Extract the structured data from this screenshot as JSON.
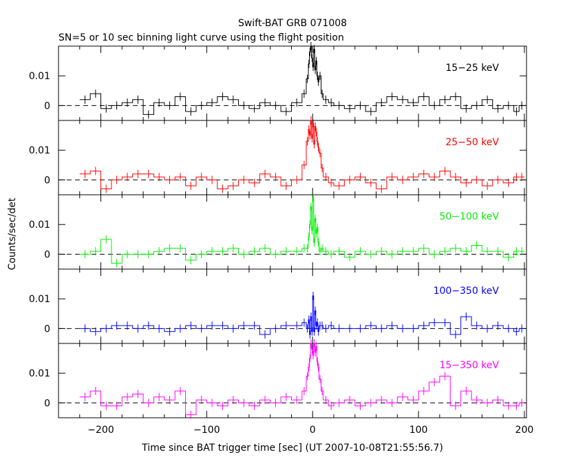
{
  "chart_data": {
    "type": "line",
    "title": "Swift-BAT GRB 071008",
    "subtitle": "SN=5 or 10 sec binning light curve using the flight position",
    "xlabel": "Time since BAT trigger time [sec] (UT 2007-10-08T21:55:56.7)",
    "ylabel": "Counts/sec/det",
    "xlim": [
      -240,
      202
    ],
    "x_ticks": [
      -200,
      -100,
      0,
      100,
      200
    ],
    "x_tick_labels": [
      "−200",
      "−100",
      "0",
      "100",
      "200"
    ],
    "y_ticks": [
      0,
      0.01
    ],
    "y_tick_labels": [
      "0",
      "0.01"
    ],
    "grid": false,
    "legend": "none",
    "panels": [
      {
        "label": "15−25 keV",
        "color": "#000000",
        "ylim": [
          -0.005,
          0.02
        ],
        "series": [
          {
            "x": [
              -220,
              -210,
              -200,
              -190,
              -180,
              -170,
              -160,
              -150,
              -140,
              -130,
              -120,
              -110,
              -100,
              -90,
              -80,
              -70,
              -60,
              -50,
              -40,
              -30,
              -20,
              -10,
              -6,
              -4,
              -3,
              -2,
              -1,
              0,
              1,
              2,
              3,
              4,
              5,
              6,
              8,
              10,
              15,
              20,
              30,
              40,
              50,
              60,
              70,
              80,
              90,
              100,
              110,
              120,
              130,
              140,
              150,
              160,
              170,
              180,
              190,
              195
            ],
            "y": [
              0.002,
              0.004,
              -0.001,
              0,
              0.001,
              0.002,
              -0.003,
              0.001,
              0,
              0.003,
              -0.002,
              0,
              0.001,
              0.003,
              0.002,
              0,
              -0.001,
              0.001,
              0,
              -0.002,
              0.001,
              0.004,
              0.009,
              0.014,
              0.018,
              0.02,
              0.016,
              0.013,
              0.019,
              0.012,
              0.015,
              0.01,
              0.008,
              0.01,
              0.004,
              0.002,
              0.001,
              0,
              -0.001,
              0,
              -0.002,
              0.001,
              0.003,
              0.002,
              0.001,
              0.003,
              0,
              0.002,
              0.003,
              -0.001,
              0,
              0.002,
              -0.001,
              0,
              -0.002,
              0
            ]
          }
        ]
      },
      {
        "label": "25−50 keV",
        "color": "#ff0000",
        "ylim": [
          -0.005,
          0.02
        ],
        "series": [
          {
            "x": [
              -220,
              -210,
              -200,
              -190,
              -180,
              -170,
              -160,
              -150,
              -140,
              -130,
              -120,
              -110,
              -100,
              -90,
              -80,
              -70,
              -60,
              -50,
              -40,
              -30,
              -20,
              -10,
              -6,
              -4,
              -3,
              -2,
              -1,
              0,
              1,
              2,
              3,
              4,
              5,
              6,
              8,
              10,
              15,
              20,
              30,
              40,
              50,
              60,
              70,
              80,
              90,
              100,
              110,
              120,
              130,
              140,
              150,
              160,
              170,
              180,
              190,
              195
            ],
            "y": [
              0.002,
              0.003,
              -0.003,
              0,
              0.001,
              0.002,
              0.002,
              0.001,
              0,
              0.001,
              -0.002,
              0.001,
              0,
              -0.003,
              -0.002,
              0,
              -0.001,
              0.002,
              0.001,
              -0.002,
              0,
              0.005,
              0.013,
              0.017,
              0.015,
              0.02,
              0.014,
              0.019,
              0.012,
              0.018,
              0.016,
              0.013,
              0.011,
              0.009,
              0.004,
              0.001,
              -0.001,
              -0.002,
              0,
              0.001,
              -0.001,
              -0.003,
              0.001,
              0,
              0.001,
              0.002,
              0.001,
              0.003,
              0.001,
              -0.001,
              0,
              -0.002,
              0,
              -0.001,
              0.001,
              0.001
            ]
          }
        ]
      },
      {
        "label": "50−100 keV",
        "color": "#00ee00",
        "ylim": [
          -0.005,
          0.02
        ],
        "series": [
          {
            "x": [
              -220,
              -210,
              -200,
              -190,
              -180,
              -170,
              -160,
              -150,
              -140,
              -130,
              -120,
              -110,
              -100,
              -90,
              -80,
              -70,
              -60,
              -50,
              -40,
              -30,
              -20,
              -10,
              -6,
              -4,
              -3,
              -2,
              -1,
              0,
              1,
              2,
              3,
              4,
              5,
              6,
              8,
              10,
              15,
              20,
              30,
              40,
              50,
              60,
              70,
              80,
              90,
              100,
              110,
              120,
              130,
              140,
              150,
              160,
              170,
              180,
              190,
              195
            ],
            "y": [
              0,
              0.001,
              0.005,
              -0.003,
              0,
              0,
              0,
              0.001,
              0.002,
              0.002,
              -0.002,
              0,
              0.001,
              0.001,
              0.002,
              0,
              0.001,
              0.002,
              0,
              0.001,
              0.001,
              0.002,
              0.002,
              0.006,
              0.01,
              0.016,
              0.008,
              0.019,
              0.004,
              0.012,
              0.007,
              0.009,
              0.004,
              0.001,
              0.002,
              0.001,
              0,
              0.001,
              -0.001,
              0.001,
              0,
              0.001,
              0,
              0.001,
              0.001,
              0.002,
              0,
              0.001,
              0.002,
              0.001,
              0.003,
              0.001,
              0.001,
              -0.001,
              0.001,
              0.001
            ]
          }
        ]
      },
      {
        "label": "100−350 keV",
        "color": "#0000ff",
        "ylim": [
          -0.005,
          0.02
        ],
        "series": [
          {
            "x": [
              -220,
              -210,
              -200,
              -190,
              -180,
              -170,
              -160,
              -150,
              -140,
              -130,
              -120,
              -110,
              -100,
              -90,
              -80,
              -70,
              -60,
              -50,
              -40,
              -30,
              -20,
              -10,
              -6,
              -4,
              -3,
              -2,
              -1,
              0,
              1,
              2,
              3,
              4,
              5,
              6,
              8,
              10,
              15,
              20,
              30,
              40,
              50,
              60,
              70,
              80,
              90,
              100,
              110,
              120,
              130,
              140,
              150,
              160,
              170,
              180,
              190,
              195
            ],
            "y": [
              0,
              -0.001,
              0,
              0.001,
              0.001,
              0,
              0.001,
              0,
              -0.001,
              0,
              0.001,
              0,
              0.001,
              0.001,
              0,
              0.001,
              0.001,
              -0.002,
              0,
              0.001,
              0.001,
              0.002,
              0,
              0.003,
              -0.002,
              0.004,
              -0.001,
              0.011,
              -0.001,
              0.006,
              0.001,
              0.002,
              -0.001,
              0.001,
              0.001,
              0,
              0.001,
              0,
              0,
              0,
              0.001,
              0,
              0.001,
              0,
              0,
              0.001,
              0.002,
              0.002,
              -0.002,
              0.004,
              0.001,
              0,
              0.001,
              0,
              -0.001,
              0
            ]
          }
        ]
      },
      {
        "label": "15−350 keV",
        "color": "#ff00ff",
        "ylim": [
          -0.005,
          0.02
        ],
        "series": [
          {
            "x": [
              -220,
              -210,
              -200,
              -190,
              -180,
              -170,
              -160,
              -150,
              -140,
              -130,
              -120,
              -110,
              -100,
              -90,
              -80,
              -70,
              -60,
              -50,
              -40,
              -30,
              -20,
              -10,
              -6,
              -4,
              -3,
              -2,
              -1,
              0,
              1,
              2,
              3,
              4,
              5,
              6,
              8,
              10,
              15,
              20,
              30,
              40,
              50,
              60,
              70,
              80,
              90,
              100,
              110,
              120,
              130,
              140,
              150,
              160,
              170,
              180,
              190,
              195
            ],
            "y": [
              0.002,
              0.004,
              -0.001,
              -0.001,
              0.002,
              0.003,
              0,
              0.002,
              0.001,
              0.004,
              -0.004,
              0.001,
              0,
              -0.001,
              0.001,
              0,
              -0.001,
              0.001,
              0,
              0.002,
              0.001,
              0.004,
              0.009,
              0.012,
              0.015,
              0.02,
              0.018,
              0.016,
              0.02,
              0.017,
              0.019,
              0.014,
              0.012,
              0.008,
              0.004,
              0.001,
              -0.001,
              0,
              0.001,
              -0.001,
              0,
              0.001,
              0,
              0.002,
              0.001,
              0.004,
              0.007,
              0.009,
              -0.001,
              0.004,
              0.001,
              0,
              0.001,
              -0.001,
              -0.001,
              0
            ]
          }
        ]
      }
    ]
  }
}
